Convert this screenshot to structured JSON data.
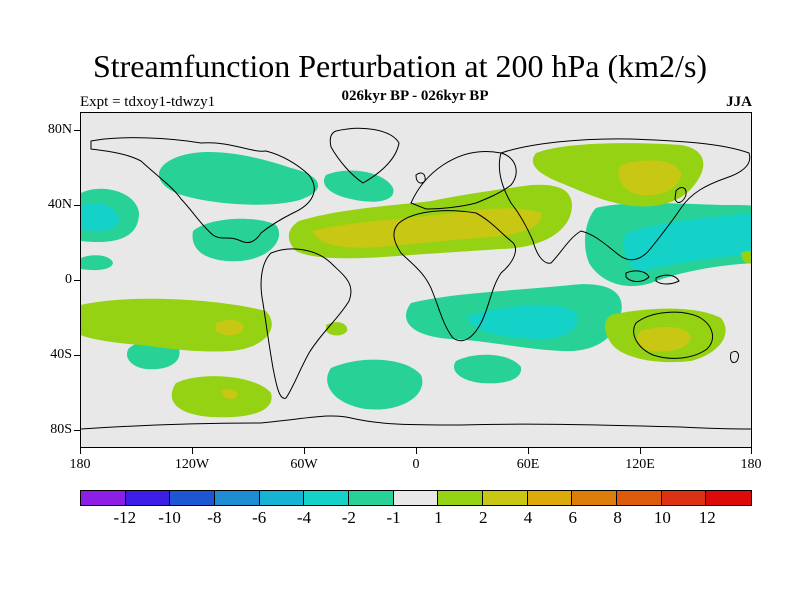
{
  "title": "Streamfunction Perturbation at 200 hPa (km2/s)",
  "subtitle": "026kyr BP - 026kyr BP",
  "expt": "Expt = tdxoy1-tdwzy1",
  "season": "JJA",
  "axes": {
    "ylabels": [
      "80N",
      "40N",
      "0",
      "40S",
      "80S"
    ],
    "xlabels": [
      "180",
      "120W",
      "60W",
      "0",
      "60E",
      "120E",
      "180"
    ]
  },
  "colorbar": {
    "colors": [
      "#8c1ee6",
      "#3c1ee6",
      "#1e55d2",
      "#1e8cd2",
      "#14b4d2",
      "#14d2c8",
      "#28d296",
      "#e8e8e8",
      "#96d214",
      "#c8c814",
      "#dcaa0a",
      "#dc7d0a",
      "#dc5a0a",
      "#dc3214",
      "#dc0a0a"
    ],
    "labels": [
      "-12",
      "-10",
      "-8",
      "-6",
      "-4",
      "-2",
      "-1",
      "1",
      "2",
      "4",
      "6",
      "8",
      "10",
      "12"
    ]
  },
  "field_colors": {
    "background": "#e8e8e8",
    "neg1": "#28d296",
    "neg2": "#14d2c8",
    "pos1": "#96d214",
    "pos2": "#c8c814",
    "pos3": "#dcaa0a"
  }
}
